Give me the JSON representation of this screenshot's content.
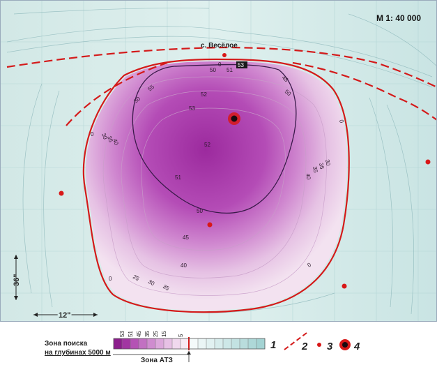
{
  "map": {
    "scale_label": "М 1: 40 000",
    "village_label": "с. Весёлое",
    "grid_label_x": "12\"",
    "grid_label_y": "36\"",
    "contour_labels": {
      "top_zero": "0",
      "top_fifty": "50",
      "top_fiftyone": "51",
      "top_fiftyfive": "55",
      "top_dark": "53",
      "nw_fiftyfive": "55",
      "nw_fifty": "50",
      "inner_52a": "52",
      "inner_53": "53",
      "inner_52b": "52",
      "inner_51": "51",
      "inner_50": "50",
      "ne_45": "45",
      "ne_50": "50",
      "right_zero": "0",
      "e_40": "40",
      "e_35a": "35",
      "e_35b": "35",
      "e_30": "30",
      "left_zero": "0",
      "w_30": "30",
      "w_35": "35",
      "w_40": "40",
      "c_45": "45",
      "c_40": "40",
      "s_35": "35",
      "s_30": "30",
      "s_25": "25",
      "bottom_zero_left": "0",
      "bottom_zero_right": "0"
    },
    "colors": {
      "background": "#d6ece9",
      "zone_outer": "#ecd6ec",
      "zone_core": "#a028a0",
      "red": "#d81818"
    }
  },
  "legend": {
    "search_zone_line1": "Зона поиска",
    "search_zone_line2": "на глубинах 5000 м",
    "scale_numbers": [
      "53",
      "51",
      "45",
      "35",
      "25",
      "15",
      "5"
    ],
    "ato_zone_label": "Зона АТЗ",
    "item1_number": "1",
    "item2_number": "2",
    "item3_number": "3",
    "item4_number": "4"
  }
}
